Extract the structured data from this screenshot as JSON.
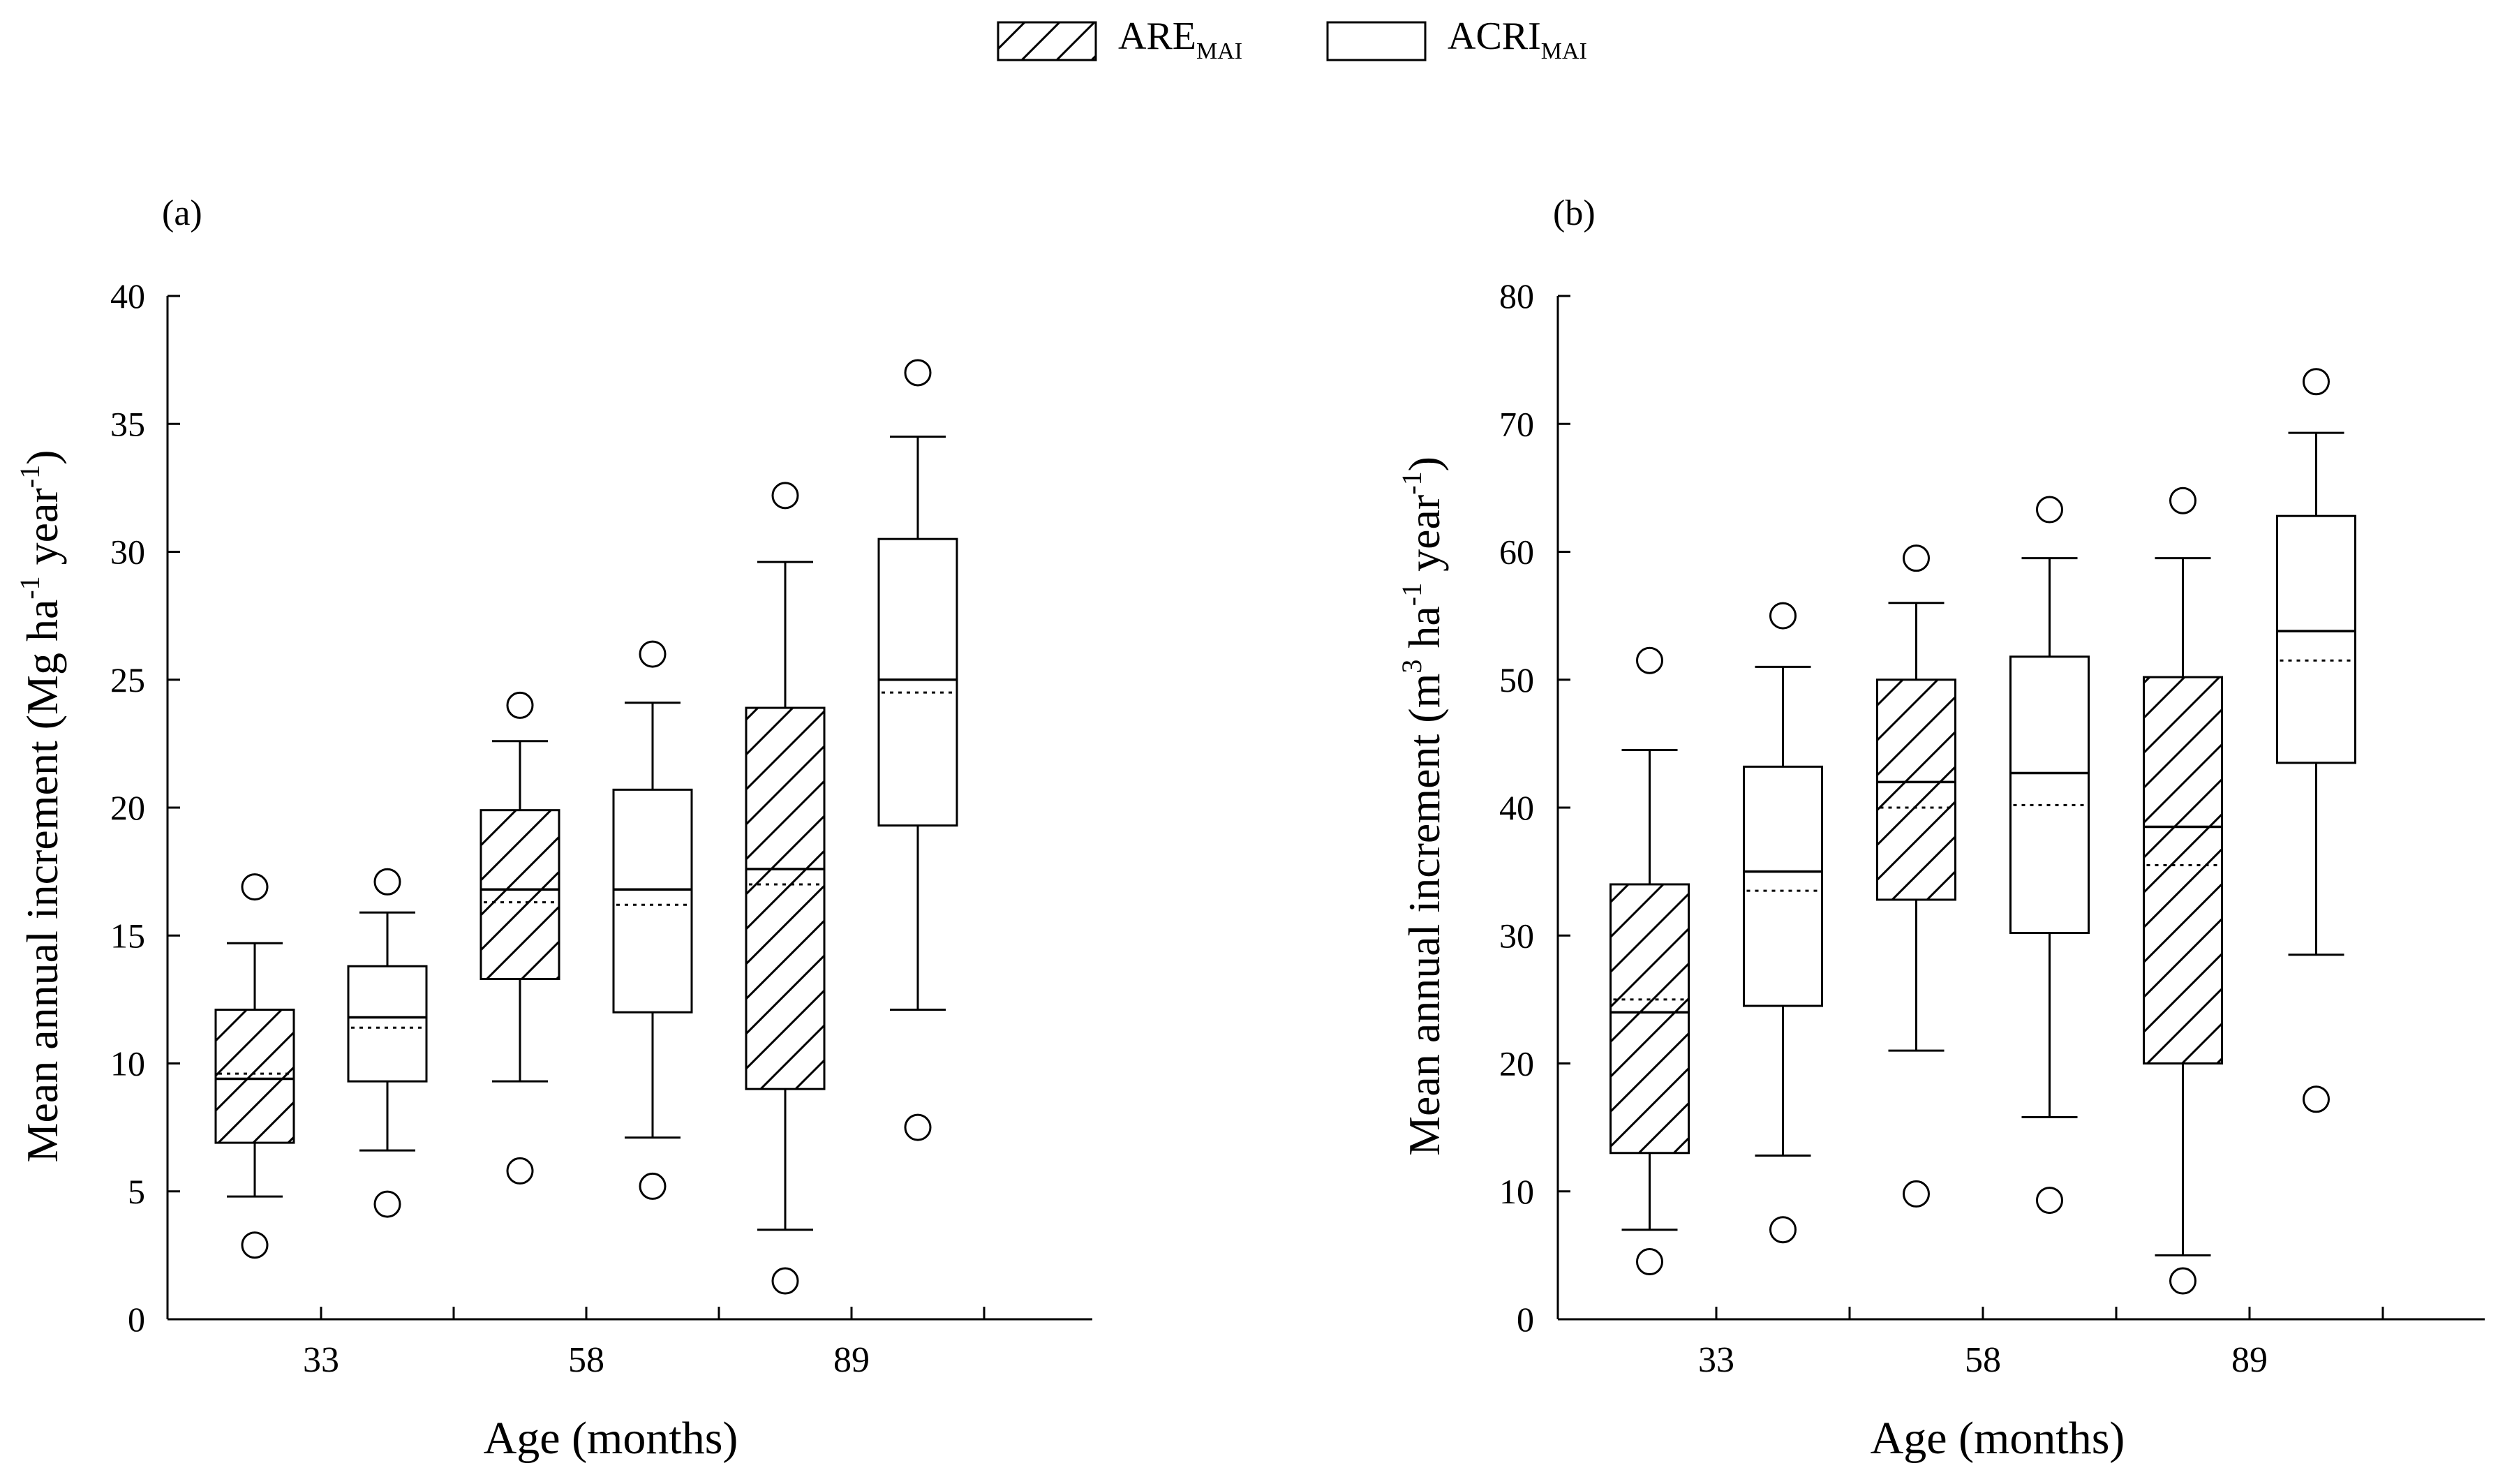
{
  "legend": {
    "items": [
      {
        "name": "ARE",
        "sub": "MAI",
        "pattern": "hatched"
      },
      {
        "name": "ACRI",
        "sub": "MAI",
        "pattern": "open"
      }
    ]
  },
  "chart_data": [
    {
      "panel": "(a)",
      "type": "boxplot",
      "xlabel": "Age (months)",
      "ylabel_parts": [
        "Mean annual increment (Mg ha",
        "-1",
        " year",
        "-1",
        ")"
      ],
      "ylim": [
        0,
        40
      ],
      "yticks": [
        0,
        5,
        10,
        15,
        20,
        25,
        30,
        35,
        40
      ],
      "categories": [
        "33",
        "58",
        "89"
      ],
      "series": [
        {
          "name": "ARE_MAI",
          "boxes": [
            {
              "category": "33",
              "whisker_low": 4.8,
              "q1": 6.9,
              "median": 9.4,
              "mean": 9.6,
              "q3": 12.1,
              "whisker_high": 14.7,
              "outliers": [
                2.9,
                16.9
              ]
            },
            {
              "category": "58",
              "whisker_low": 9.3,
              "q1": 13.3,
              "median": 16.8,
              "mean": 16.3,
              "q3": 19.9,
              "whisker_high": 22.6,
              "outliers": [
                5.8,
                24.0
              ]
            },
            {
              "category": "89",
              "whisker_low": 3.5,
              "q1": 9.0,
              "median": 17.6,
              "mean": 17.0,
              "q3": 23.9,
              "whisker_high": 29.6,
              "outliers": [
                1.5,
                32.2
              ]
            }
          ]
        },
        {
          "name": "ACRI_MAI",
          "boxes": [
            {
              "category": "33",
              "whisker_low": 6.6,
              "q1": 9.3,
              "median": 11.8,
              "mean": 11.4,
              "q3": 13.8,
              "whisker_high": 15.9,
              "outliers": [
                4.5,
                17.1
              ]
            },
            {
              "category": "58",
              "whisker_low": 7.1,
              "q1": 12.0,
              "median": 16.8,
              "mean": 16.2,
              "q3": 20.7,
              "whisker_high": 24.1,
              "outliers": [
                5.2,
                26.0
              ]
            },
            {
              "category": "89",
              "whisker_low": 12.1,
              "q1": 19.3,
              "median": 25.0,
              "mean": 24.5,
              "q3": 30.5,
              "whisker_high": 34.5,
              "outliers": [
                7.5,
                37.0
              ]
            }
          ]
        }
      ]
    },
    {
      "panel": "(b)",
      "type": "boxplot",
      "xlabel": "Age (months)",
      "ylabel_parts": [
        "Mean annual increment (m",
        "3",
        " ha",
        "-1",
        " year",
        "-1",
        ")"
      ],
      "ylim": [
        0,
        80
      ],
      "yticks": [
        0,
        10,
        20,
        30,
        40,
        50,
        60,
        70,
        80
      ],
      "categories": [
        "33",
        "58",
        "89"
      ],
      "series": [
        {
          "name": "ARE_MAI",
          "boxes": [
            {
              "category": "33",
              "whisker_low": 7.0,
              "q1": 13.0,
              "median": 24.0,
              "mean": 25.0,
              "q3": 34.0,
              "whisker_high": 44.5,
              "outliers": [
                4.5,
                51.5
              ]
            },
            {
              "category": "58",
              "whisker_low": 21.0,
              "q1": 32.8,
              "median": 42.0,
              "mean": 40.0,
              "q3": 50.0,
              "whisker_high": 56.0,
              "outliers": [
                9.8,
                59.5
              ]
            },
            {
              "category": "89",
              "whisker_low": 5.0,
              "q1": 20.0,
              "median": 38.5,
              "mean": 35.5,
              "q3": 50.2,
              "whisker_high": 59.5,
              "outliers": [
                3.0,
                64.0
              ]
            }
          ]
        },
        {
          "name": "ACRI_MAI",
          "boxes": [
            {
              "category": "33",
              "whisker_low": 12.8,
              "q1": 24.5,
              "median": 35.0,
              "mean": 33.5,
              "q3": 43.2,
              "whisker_high": 51.0,
              "outliers": [
                7.0,
                55.0
              ]
            },
            {
              "category": "58",
              "whisker_low": 15.8,
              "q1": 30.2,
              "median": 42.7,
              "mean": 40.2,
              "q3": 51.8,
              "whisker_high": 59.5,
              "outliers": [
                9.3,
                63.3
              ]
            },
            {
              "category": "89",
              "whisker_low": 28.5,
              "q1": 43.5,
              "median": 53.8,
              "mean": 51.5,
              "q3": 62.8,
              "whisker_high": 69.3,
              "outliers": [
                17.2,
                73.3
              ]
            }
          ]
        }
      ]
    }
  ]
}
